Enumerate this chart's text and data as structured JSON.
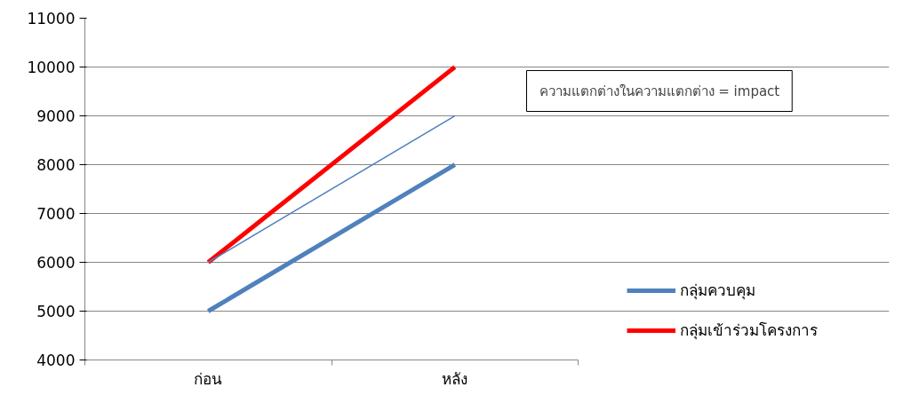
{
  "chart_data": {
    "type": "line",
    "categories": [
      "ก่อน",
      "หลัง"
    ],
    "series": [
      {
        "name": "กลุ่มควบคุม",
        "color": "#4f81bd",
        "values": [
          5000,
          8000
        ]
      },
      {
        "name": "กลุ่มเข้าร่วมโครงการ",
        "color": "#ff0000",
        "values": [
          6000,
          10000
        ]
      },
      {
        "color": "#4f81bd",
        "values": [
          6000,
          9000
        ]
      }
    ],
    "ylim": [
      4000,
      11000
    ],
    "yticks": [
      4000,
      5000,
      6000,
      7000,
      8000,
      9000,
      10000,
      11000
    ],
    "grid": "y",
    "legend": "right",
    "marker": "none",
    "line_style": "solid",
    "annotations": [
      "ความแตกต่างในความแตกต่าง = impact"
    ]
  }
}
